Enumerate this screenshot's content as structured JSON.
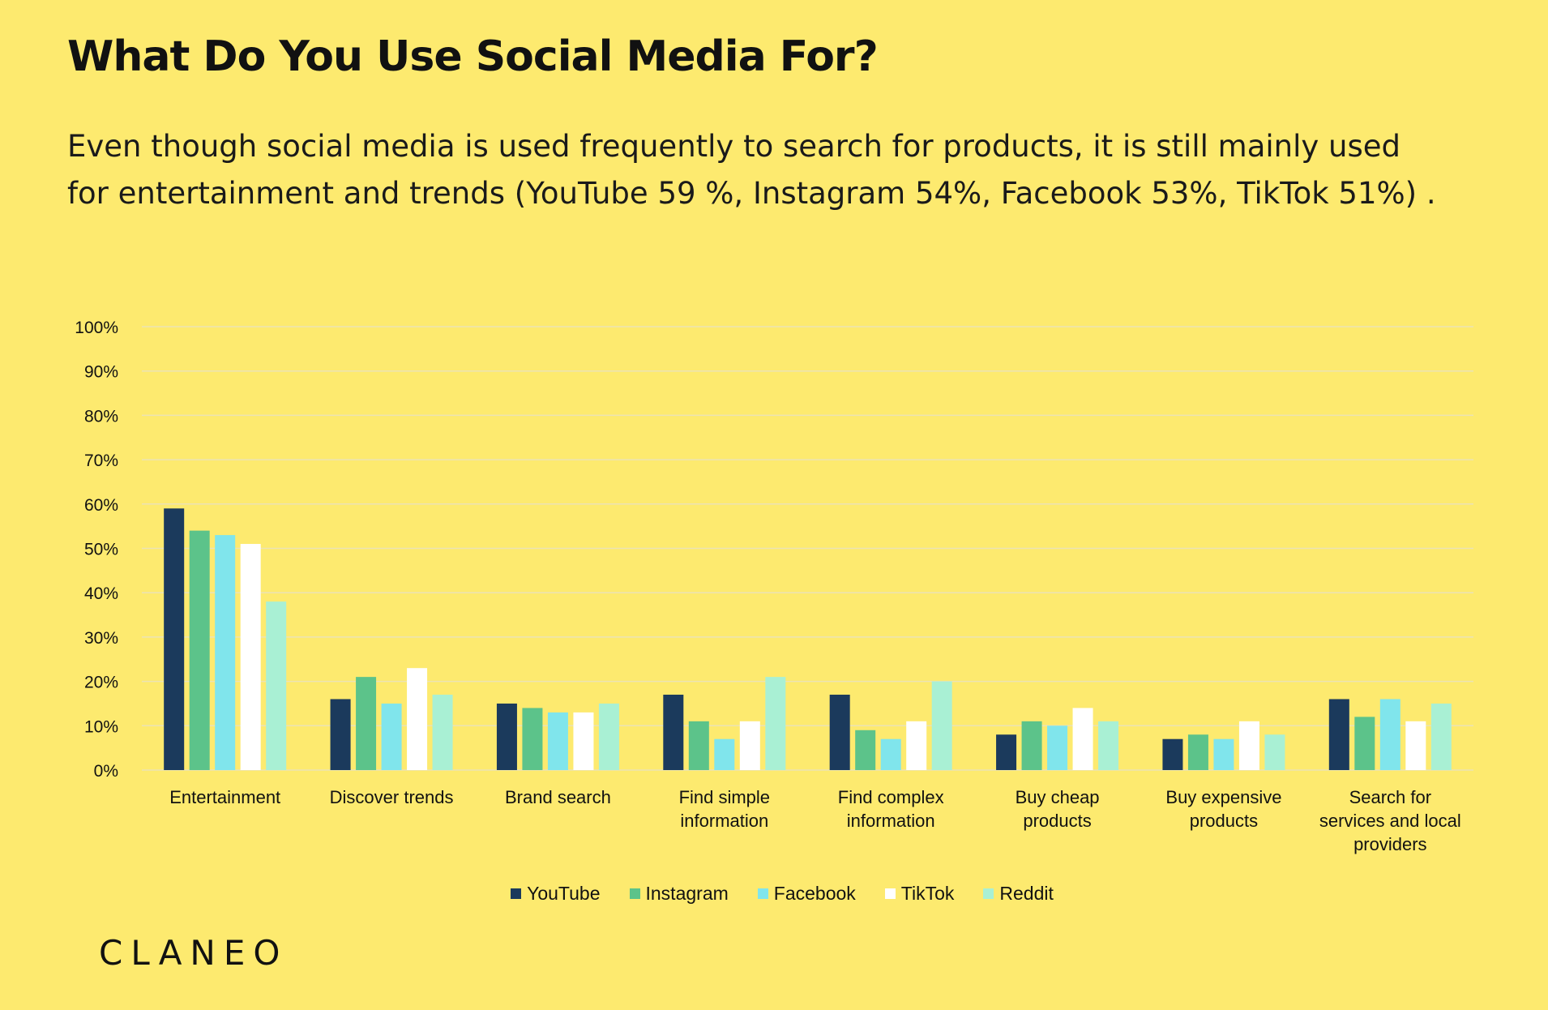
{
  "page": {
    "title": "What Do You Use Social Media For?",
    "subtitle": "Even though social media is used frequently to search for products, it is still mainly used for entertainment and trends (YouTube 59 %, Instagram 54%, Facebook 53%, TikTok 51%) .",
    "brand": "CLANEO"
  },
  "colors": {
    "background": "#fdea6f",
    "grid": "#ece3b4",
    "axis_text": "#111111"
  },
  "chart_data": {
    "type": "bar",
    "categories": [
      [
        "Entertainment"
      ],
      [
        "Discover trends"
      ],
      [
        "Brand search"
      ],
      [
        "Find simple",
        "information"
      ],
      [
        "Find complex",
        "information"
      ],
      [
        "Buy cheap",
        "products"
      ],
      [
        "Buy expensive",
        "products"
      ],
      [
        "Search for",
        "services and local",
        "providers"
      ]
    ],
    "series": [
      {
        "name": "YouTube",
        "color": "#1b3a5c",
        "values": [
          59,
          16,
          15,
          17,
          17,
          8,
          7,
          16
        ]
      },
      {
        "name": "Instagram",
        "color": "#5cc38a",
        "values": [
          54,
          21,
          14,
          11,
          9,
          11,
          8,
          12
        ]
      },
      {
        "name": "Facebook",
        "color": "#80e5ec",
        "values": [
          53,
          15,
          13,
          7,
          7,
          10,
          7,
          16
        ]
      },
      {
        "name": "TikTok",
        "color": "#ffffff",
        "values": [
          51,
          23,
          13,
          11,
          11,
          14,
          11,
          11
        ]
      },
      {
        "name": "Reddit",
        "color": "#a9f0d4",
        "values": [
          38,
          17,
          15,
          21,
          20,
          11,
          8,
          15
        ]
      }
    ],
    "yticks": [
      "0%",
      "10%",
      "20%",
      "30%",
      "40%",
      "50%",
      "60%",
      "70%",
      "80%",
      "90%",
      "100%"
    ],
    "ylim": [
      0,
      100
    ],
    "legend": "bottom-center",
    "grid": true
  }
}
